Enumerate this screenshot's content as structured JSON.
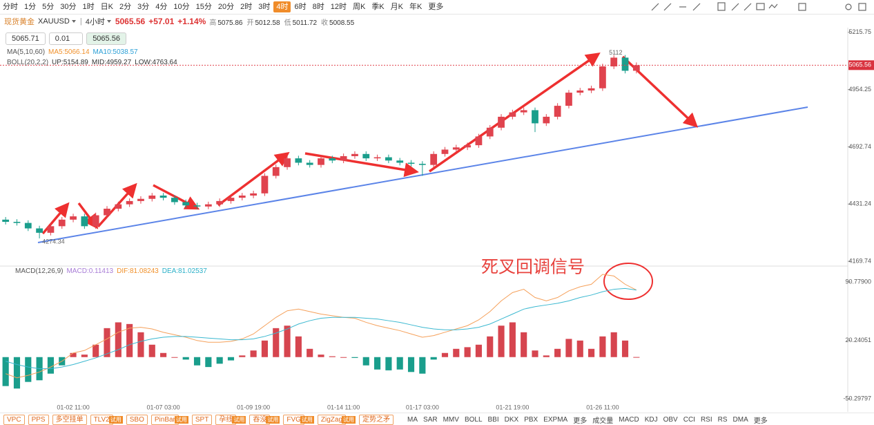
{
  "toolbar": {
    "items": [
      "分时",
      "1分",
      "5分",
      "30分",
      "1时",
      "日K",
      "2分",
      "3分",
      "4分",
      "10分",
      "15分",
      "20分",
      "2时",
      "3时",
      "4时",
      "6时",
      "8时",
      "12时",
      "周K",
      "季K",
      "月K",
      "年K",
      "更多"
    ],
    "selected_index": 14
  },
  "header": {
    "name": "现货黄金",
    "symbol": "XAUUSD",
    "period": "4小时",
    "price": "5065.56",
    "change": "+57.01",
    "change_pct": "+1.14%",
    "stats": [
      {
        "label": "高",
        "value": "5075.86"
      },
      {
        "label": "开",
        "value": "5012.58"
      },
      {
        "label": "低",
        "value": "5011.72"
      },
      {
        "label": "收",
        "value": "5008.55"
      }
    ]
  },
  "order": {
    "sell": "5065.71",
    "lot": "0.01",
    "buy": "5065.56"
  },
  "indicators": [
    {
      "name": "MA(5,10,60)",
      "values": [
        "MA5:5066.14",
        "MA10:5038.57"
      ],
      "colors": [
        "#f0902a",
        "#2a9fd6"
      ]
    },
    {
      "name": "BOLL(20,2,2)",
      "values": [
        "UP:5154.89",
        "MID:4959.27",
        "LOW:4763.64"
      ],
      "colors": [
        "#333333",
        "#333333",
        "#333333"
      ]
    }
  ],
  "annotation": "死叉回调信号",
  "chart_data": [
    {
      "type": "candlestick",
      "up_color": "#e0434e",
      "down_color": "#1a9e8c",
      "categories": [
        null,
        null,
        null,
        null,
        null,
        null,
        "01-02 11:00",
        null,
        null,
        null,
        null,
        null,
        null,
        null,
        "01-07 03:00",
        null,
        null,
        null,
        null,
        null,
        null,
        null,
        "01-09 19:00",
        null,
        null,
        null,
        null,
        null,
        null,
        null,
        "01-14 11:00",
        null,
        null,
        null,
        null,
        null,
        null,
        "01-17 03:00",
        null,
        null,
        null,
        null,
        null,
        null,
        null,
        "01-21 19:00",
        null,
        null,
        null,
        null,
        null,
        null,
        null,
        "01-26 11:00",
        null,
        null,
        null
      ],
      "open": [
        4360,
        4350,
        4345,
        4320,
        4300,
        4330,
        4360,
        4375,
        4330,
        4380,
        4410,
        4430,
        4445,
        4455,
        4470,
        4460,
        4440,
        4425,
        4420,
        4430,
        4445,
        4460,
        4470,
        4480,
        4560,
        4600,
        4640,
        4620,
        4610,
        4640,
        4630,
        4650,
        4660,
        4640,
        4645,
        4630,
        4620,
        4615,
        4610,
        4660,
        4680,
        4690,
        4700,
        4740,
        4780,
        4830,
        4850,
        4860,
        4800,
        4830,
        4880,
        4940,
        4950,
        4960,
        5060,
        5100,
        5040
      ],
      "high": [
        4372,
        4362,
        4357,
        4332,
        4342,
        4372,
        4387,
        4387,
        4392,
        4422,
        4442,
        4457,
        4467,
        4482,
        4482,
        4472,
        4452,
        4437,
        4442,
        4457,
        4472,
        4482,
        4492,
        4572,
        4612,
        4652,
        4652,
        4632,
        4652,
        4652,
        4662,
        4672,
        4672,
        4657,
        4657,
        4642,
        4632,
        4627,
        4672,
        4692,
        4702,
        4712,
        4752,
        4792,
        4842,
        4862,
        4872,
        4872,
        4842,
        4892,
        4952,
        4962,
        4972,
        5072,
        5111.18,
        5112,
        5078
      ],
      "low": [
        4338,
        4333,
        4308,
        4274.34,
        4288,
        4318,
        4348,
        4318,
        4318,
        4368,
        4398,
        4418,
        4433,
        4443,
        4448,
        4428,
        4413,
        4408,
        4408,
        4418,
        4433,
        4448,
        4458,
        4468,
        4548,
        4588,
        4608,
        4598,
        4598,
        4618,
        4618,
        4638,
        4628,
        4628,
        4618,
        4608,
        4603,
        4560,
        4598,
        4648,
        4668,
        4678,
        4688,
        4728,
        4768,
        4818,
        4838,
        4760,
        4788,
        4818,
        4868,
        4928,
        4938,
        4948,
        5048,
        5028,
        5028
      ],
      "close": [
        4350,
        4345,
        4320,
        4300,
        4330,
        4360,
        4375,
        4330,
        4380,
        4410,
        4430,
        4445,
        4455,
        4470,
        4460,
        4440,
        4425,
        4420,
        4430,
        4445,
        4460,
        4470,
        4480,
        4560,
        4600,
        4640,
        4620,
        4610,
        4640,
        4630,
        4650,
        4660,
        4640,
        4645,
        4630,
        4620,
        4615,
        4610,
        4660,
        4680,
        4690,
        4700,
        4740,
        4780,
        4830,
        4850,
        4860,
        4800,
        4830,
        4880,
        4940,
        4950,
        4960,
        5060,
        5100,
        5040,
        5065.56
      ],
      "ylim": [
        4148,
        5237
      ],
      "yticks": [
        5215.75,
        4954.25,
        4692.74,
        4431.24,
        4169.74
      ]
    },
    {
      "type": "macd",
      "legend": {
        "name": "MACD(12,26,9)",
        "items": [
          "MACD:0.11413",
          "DIF:81.08243",
          "DEA:81.02537"
        ],
        "colors": [
          "#a77bd6",
          "#f0902a",
          "#2ab0c8"
        ]
      },
      "histogram": [
        -35,
        -38,
        -30,
        -28,
        -20,
        -10,
        5,
        3,
        15,
        35,
        42,
        40,
        30,
        15,
        5,
        0,
        -3,
        -10,
        -12,
        -8,
        -4,
        2,
        8,
        20,
        35,
        38,
        25,
        10,
        3,
        1,
        0,
        -1,
        -10,
        -15,
        -16,
        -15,
        -18,
        -20,
        -3,
        5,
        10,
        12,
        15,
        25,
        38,
        42,
        30,
        8,
        2,
        10,
        22,
        20,
        10,
        25,
        30,
        20,
        0.11413
      ],
      "up_color": "#d6454f",
      "down_color": "#1a9e8c",
      "series": [
        {
          "color": "#f5a05a",
          "values": [
            -20,
            -25,
            -22,
            -18,
            -12,
            -5,
            5,
            8,
            15,
            22,
            30,
            35,
            36,
            34,
            30,
            27,
            24,
            20,
            18,
            18,
            19,
            22,
            28,
            38,
            48,
            56,
            58,
            55,
            52,
            50,
            48,
            47,
            42,
            38,
            35,
            32,
            28,
            24,
            26,
            30,
            34,
            38,
            45,
            55,
            68,
            78,
            82,
            72,
            68,
            72,
            80,
            85,
            88,
            100,
            98,
            88,
            81.08243
          ]
        },
        {
          "color": "#3ab8d0",
          "values": [
            -5,
            -9,
            -12,
            -14,
            -14,
            -12,
            -9,
            -5,
            -1,
            4,
            9,
            15,
            19,
            22,
            24,
            25,
            25,
            24,
            23,
            22,
            21,
            21,
            22,
            25,
            29,
            34,
            40,
            44,
            47,
            48,
            48,
            48,
            47,
            46,
            44,
            42,
            39,
            36,
            34,
            33,
            33,
            34,
            36,
            40,
            46,
            52,
            58,
            61,
            63,
            65,
            68,
            72,
            75,
            79,
            82,
            83,
            81.02537
          ]
        }
      ],
      "ylim": [
        -57,
        109.2
      ],
      "yticks": [
        {
          "value": 90.779,
          "label": "90.77900"
        },
        20.24051,
        -50.29797
      ]
    }
  ],
  "bottom": {
    "left": [
      {
        "label": "VPC"
      },
      {
        "label": "PPS"
      },
      {
        "label": "多空挂单"
      },
      {
        "label": "TLV2",
        "tag": "试用"
      },
      {
        "label": "SBO"
      },
      {
        "label": "PinBar",
        "tag": "试用"
      },
      {
        "label": "SPT"
      },
      {
        "label": "孕线",
        "tag": "试用"
      },
      {
        "label": "吞没",
        "tag": "试用"
      },
      {
        "label": "FVG",
        "tag": "试用"
      },
      {
        "label": "ZigZag",
        "tag": "试用"
      },
      {
        "label": "定势之矛"
      }
    ],
    "right": [
      "MA",
      "SAR",
      "MMV",
      "BOLL",
      "BBI",
      "DKX",
      "PBX",
      "EXPMA",
      "更多",
      "成交量",
      "MACD",
      "KDJ",
      "OBV",
      "CCI",
      "RSI",
      "RS",
      "DMA",
      "更多"
    ]
  }
}
